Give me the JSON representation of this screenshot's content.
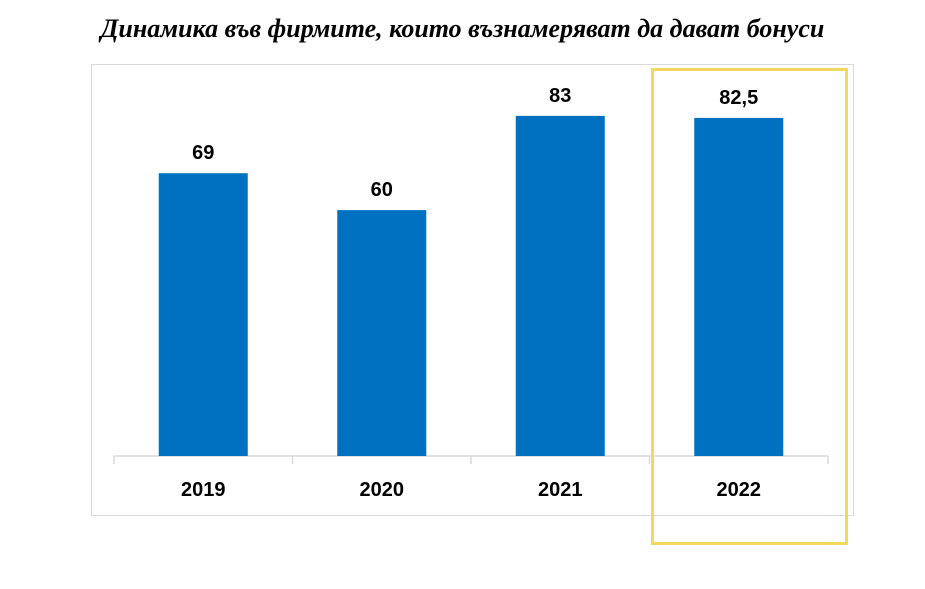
{
  "title": "Динамика във фирмите, които възнамеряват да  дават бонуси",
  "colors": {
    "bar": "#0070c0",
    "highlight": "#f2d95c",
    "axis": "#d9d9d9",
    "text": "#000000"
  },
  "chart_data": {
    "type": "bar",
    "categories": [
      "2019",
      "2020",
      "2021",
      "2022"
    ],
    "values": [
      69,
      60,
      83,
      82.5
    ],
    "data_labels": [
      "69",
      "60",
      "83",
      "82,5"
    ],
    "ylim": [
      0,
      100
    ],
    "grid": false,
    "legend": "none",
    "highlighted_category": "2022"
  }
}
